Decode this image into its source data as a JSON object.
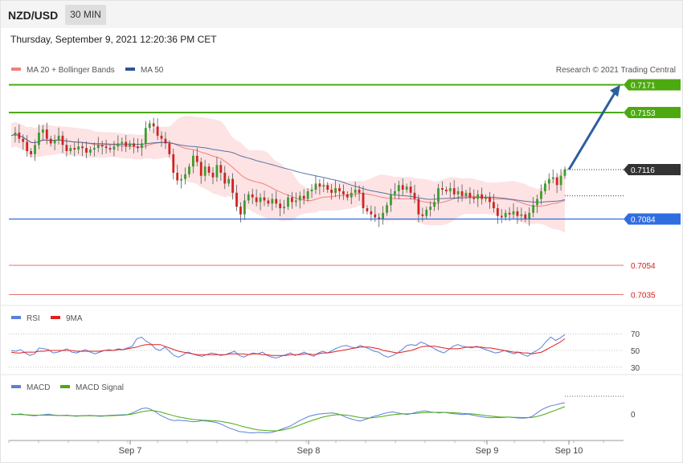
{
  "header": {
    "symbol": "NZD/USD",
    "timeframe": "30 MIN",
    "datetime": "Thursday, September 9, 2021 12:20:36 PM CET",
    "credit": "Research © 2021 Trading Central"
  },
  "colors": {
    "resistance": "#4caa10",
    "support": "#2f6de0",
    "target_line": "#e0615f",
    "price_tag": "#333333",
    "bollinger": "#fde3e3",
    "ma20": "#f08080",
    "ma50": "#2f5597",
    "rsi": "#5b7fdd",
    "rsi_ma": "#e02020",
    "macd": "#5b7fdd",
    "macd_signal": "#4caa10",
    "arrow": "#2d5fa0",
    "candle_up": "#3c9d2c",
    "candle_down": "#d22222"
  },
  "legend": {
    "main": [
      {
        "label": "MA 20 + Bollinger Bands",
        "color": "#f08080"
      },
      {
        "label": "MA 50",
        "color": "#2f5597"
      }
    ],
    "rsi": [
      {
        "label": "RSI",
        "color": "#5b7fdd"
      },
      {
        "label": "9MA",
        "color": "#e02020"
      }
    ],
    "macd": [
      {
        "label": "MACD",
        "color": "#5b7fdd"
      },
      {
        "label": "MACD Signal",
        "color": "#4caa10"
      }
    ]
  },
  "chart_data": [
    {
      "type": "line",
      "panel": "price",
      "ylim": [
        0.7028,
        0.7178
      ],
      "levels": [
        {
          "value": 0.7171,
          "label": "0.7171",
          "kind": "resistance"
        },
        {
          "value": 0.7153,
          "label": "0.7153",
          "kind": "resistance"
        },
        {
          "value": 0.7116,
          "label": "0.7116",
          "kind": "current"
        },
        {
          "value": 0.7084,
          "label": "0.7084",
          "kind": "support"
        },
        {
          "value": 0.7054,
          "label": "0.7054",
          "kind": "target"
        },
        {
          "value": 0.7035,
          "label": "0.7035",
          "kind": "target"
        }
      ],
      "x_ticks": [
        "Sep 7",
        "Sep 8",
        "Sep 9",
        "Sep 10"
      ],
      "arrow": {
        "from": 0.7116,
        "to": 0.7171
      },
      "closes": [
        0.7138,
        0.714,
        0.7136,
        0.7134,
        0.7128,
        0.7126,
        0.7132,
        0.714,
        0.7142,
        0.7136,
        0.7133,
        0.7135,
        0.7138,
        0.7132,
        0.7128,
        0.713,
        0.7129,
        0.7131,
        0.713,
        0.7127,
        0.7129,
        0.713,
        0.7132,
        0.7131,
        0.713,
        0.7129,
        0.7131,
        0.7133,
        0.7134,
        0.7131,
        0.7133,
        0.7131,
        0.713,
        0.7133,
        0.7143,
        0.7146,
        0.7144,
        0.7138,
        0.7136,
        0.7133,
        0.7126,
        0.7114,
        0.7109,
        0.711,
        0.7113,
        0.7118,
        0.7125,
        0.7121,
        0.7112,
        0.7118,
        0.7114,
        0.7111,
        0.7119,
        0.7114,
        0.7107,
        0.711,
        0.7101,
        0.7092,
        0.7087,
        0.7096,
        0.71,
        0.7098,
        0.7095,
        0.7098,
        0.7096,
        0.7094,
        0.7097,
        0.7094,
        0.7091,
        0.7092,
        0.7098,
        0.7095,
        0.7096,
        0.7099,
        0.7097,
        0.7102,
        0.7103,
        0.7107,
        0.7105,
        0.7106,
        0.7103,
        0.7101,
        0.7104,
        0.7102,
        0.71,
        0.7098,
        0.7101,
        0.7103,
        0.7101,
        0.7091,
        0.7089,
        0.7087,
        0.7085,
        0.7084,
        0.7088,
        0.7093,
        0.71,
        0.7102,
        0.7106,
        0.7103,
        0.7105,
        0.7101,
        0.7097,
        0.7087,
        0.7086,
        0.709,
        0.7092,
        0.7095,
        0.7104,
        0.7103,
        0.7102,
        0.7104,
        0.71,
        0.7102,
        0.7099,
        0.7101,
        0.7098,
        0.7097,
        0.71,
        0.7097,
        0.7098,
        0.7095,
        0.7091,
        0.7086,
        0.7085,
        0.7088,
        0.7087,
        0.7089,
        0.7086,
        0.7087,
        0.7084,
        0.7088,
        0.7093,
        0.7097,
        0.7102,
        0.7107,
        0.711,
        0.7111,
        0.7106,
        0.7112,
        0.7116
      ]
    },
    {
      "type": "line",
      "panel": "rsi",
      "title": "RSI",
      "ylim": [
        25,
        75
      ],
      "y_ticks": [
        70,
        50,
        30
      ],
      "series": [
        {
          "name": "RSI",
          "values": [
            50,
            49,
            51,
            47,
            44,
            46,
            53,
            52,
            51,
            47,
            48,
            50,
            52,
            48,
            47,
            49,
            51,
            48,
            46,
            48,
            50,
            51,
            50,
            52,
            51,
            53,
            55,
            64,
            66,
            61,
            58,
            52,
            50,
            54,
            49,
            44,
            42,
            45,
            48,
            46,
            44,
            43,
            45,
            47,
            46,
            44,
            45,
            47,
            49,
            44,
            42,
            45,
            47,
            46,
            48,
            44,
            42,
            41,
            43,
            45,
            47,
            44,
            46,
            48,
            45,
            43,
            47,
            49,
            47,
            50,
            53,
            55,
            56,
            54,
            53,
            56,
            54,
            52,
            49,
            48,
            44,
            42,
            44,
            47,
            51,
            56,
            57,
            56,
            60,
            58,
            55,
            52,
            49,
            47,
            51,
            55,
            57,
            55,
            54,
            53,
            55,
            53,
            51,
            49,
            47,
            48,
            50,
            48,
            46,
            48,
            45,
            43,
            47,
            50,
            54,
            61,
            66,
            62,
            65,
            69
          ]
        },
        {
          "name": "9MA",
          "values": [
            48,
            47,
            47,
            48,
            48,
            48,
            49,
            49,
            50,
            50,
            50,
            50,
            50,
            50,
            49,
            49,
            49,
            49,
            49,
            49,
            50,
            50,
            50,
            51,
            51,
            52,
            53,
            54,
            56,
            57,
            57,
            57,
            57,
            55,
            53,
            51,
            49,
            48,
            47,
            46,
            45,
            45,
            45,
            45,
            45,
            45,
            45,
            46,
            46,
            46,
            46,
            45,
            46,
            46,
            45,
            45,
            44,
            44,
            44,
            44,
            45,
            45,
            45,
            46,
            46,
            45,
            46,
            47,
            47,
            48,
            49,
            50,
            51,
            52,
            53,
            54,
            54,
            54,
            53,
            52,
            50,
            49,
            48,
            47,
            48,
            49,
            50,
            52,
            54,
            55,
            55,
            55,
            54,
            53,
            52,
            52,
            52,
            53,
            54,
            54,
            54,
            54,
            53,
            53,
            52,
            51,
            50,
            49,
            48,
            48,
            47,
            47,
            46,
            47,
            48,
            51,
            54,
            57,
            60,
            64
          ]
        }
      ]
    },
    {
      "type": "line",
      "panel": "macd",
      "title": "MACD",
      "ylim": [
        -1.1,
        1.0
      ],
      "y_ticks": [
        0
      ],
      "series": [
        {
          "name": "MACD",
          "values": [
            0.0,
            -0.02,
            0.01,
            -0.03,
            -0.06,
            -0.08,
            -0.05,
            -0.03,
            0.0,
            -0.04,
            -0.07,
            -0.06,
            -0.05,
            -0.08,
            -0.1,
            -0.08,
            -0.07,
            -0.06,
            -0.08,
            -0.1,
            -0.09,
            -0.06,
            -0.05,
            -0.04,
            -0.03,
            -0.02,
            0.05,
            0.15,
            0.25,
            0.28,
            0.22,
            0.1,
            -0.05,
            -0.15,
            -0.25,
            -0.3,
            -0.28,
            -0.3,
            -0.32,
            -0.35,
            -0.34,
            -0.3,
            -0.32,
            -0.35,
            -0.38,
            -0.45,
            -0.55,
            -0.65,
            -0.72,
            -0.8,
            -0.82,
            -0.85,
            -0.86,
            -0.84,
            -0.85,
            -0.86,
            -0.84,
            -0.78,
            -0.7,
            -0.62,
            -0.55,
            -0.42,
            -0.3,
            -0.2,
            -0.1,
            -0.05,
            0.0,
            0.02,
            0.04,
            0.05,
            0.02,
            -0.05,
            -0.15,
            -0.22,
            -0.28,
            -0.32,
            -0.25,
            -0.18,
            -0.1,
            -0.05,
            0.02,
            0.07,
            0.1,
            0.05,
            0.02,
            -0.02,
            0.02,
            0.08,
            0.12,
            0.15,
            0.1,
            0.08,
            0.05,
            0.08,
            0.05,
            0.02,
            0.0,
            -0.02,
            0.0,
            -0.04,
            -0.08,
            -0.12,
            -0.15,
            -0.17,
            -0.15,
            -0.16,
            -0.15,
            -0.14,
            -0.16,
            -0.18,
            -0.19,
            -0.17,
            -0.1,
            0.05,
            0.2,
            0.3,
            0.38,
            0.42,
            0.48,
            0.52
          ]
        },
        {
          "name": "MACD Signal",
          "values": [
            -0.02,
            -0.02,
            -0.02,
            -0.03,
            -0.04,
            -0.05,
            -0.05,
            -0.05,
            -0.05,
            -0.06,
            -0.06,
            -0.07,
            -0.07,
            -0.08,
            -0.08,
            -0.08,
            -0.08,
            -0.08,
            -0.08,
            -0.08,
            -0.08,
            -0.08,
            -0.07,
            -0.06,
            -0.05,
            -0.03,
            0.0,
            0.05,
            0.1,
            0.14,
            0.16,
            0.14,
            0.1,
            0.04,
            -0.02,
            -0.08,
            -0.13,
            -0.17,
            -0.21,
            -0.24,
            -0.26,
            -0.28,
            -0.29,
            -0.3,
            -0.31,
            -0.33,
            -0.37,
            -0.41,
            -0.46,
            -0.52,
            -0.58,
            -0.63,
            -0.68,
            -0.72,
            -0.74,
            -0.76,
            -0.77,
            -0.77,
            -0.74,
            -0.7,
            -0.65,
            -0.58,
            -0.5,
            -0.42,
            -0.34,
            -0.27,
            -0.2,
            -0.14,
            -0.09,
            -0.05,
            -0.03,
            -0.03,
            -0.05,
            -0.08,
            -0.12,
            -0.16,
            -0.18,
            -0.18,
            -0.16,
            -0.13,
            -0.1,
            -0.06,
            -0.03,
            -0.01,
            0.01,
            0.01,
            0.02,
            0.03,
            0.05,
            0.07,
            0.08,
            0.08,
            0.08,
            0.08,
            0.07,
            0.06,
            0.05,
            0.03,
            0.02,
            0.01,
            -0.01,
            -0.04,
            -0.07,
            -0.09,
            -0.11,
            -0.13,
            -0.14,
            -0.14,
            -0.15,
            -0.15,
            -0.16,
            -0.16,
            -0.15,
            -0.11,
            -0.05,
            0.02,
            0.1,
            0.18,
            0.26,
            0.34
          ]
        }
      ]
    }
  ]
}
